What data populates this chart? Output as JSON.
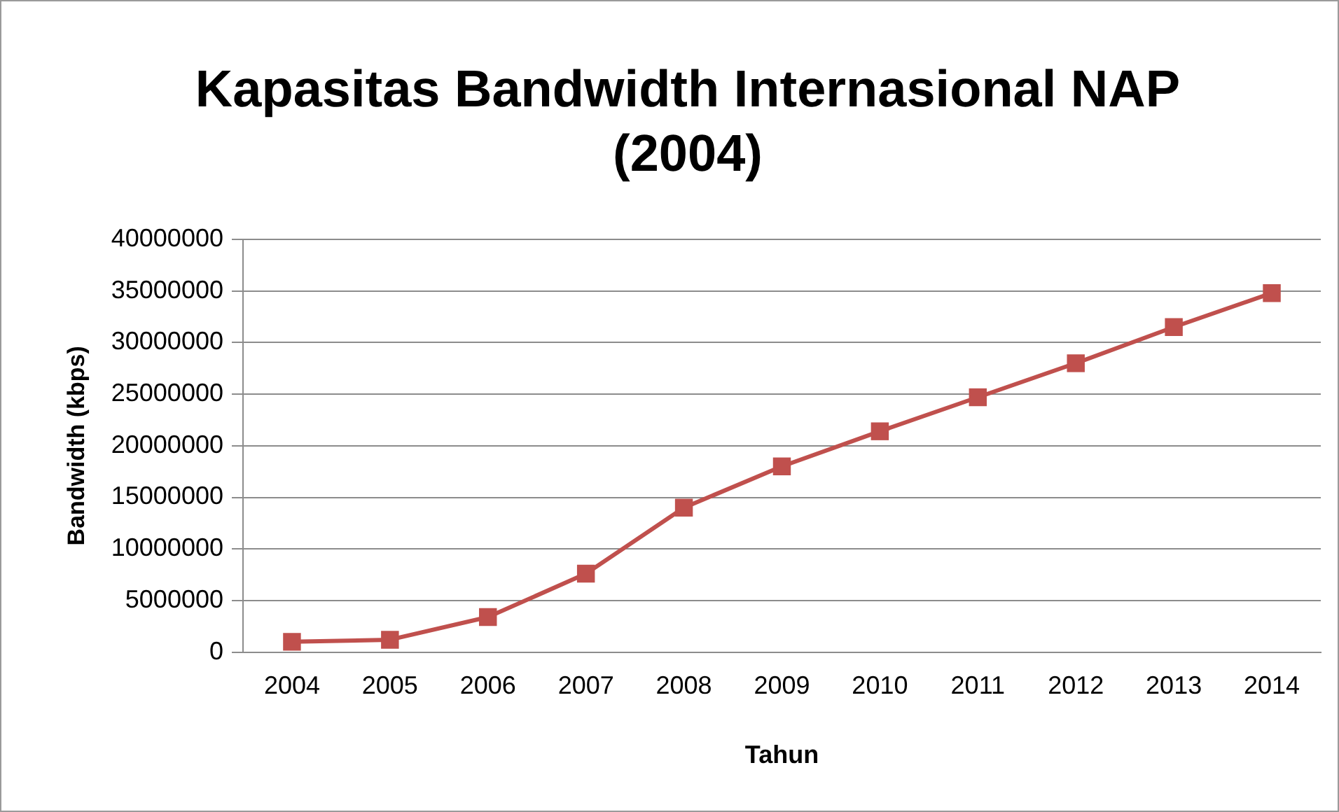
{
  "chart_data": {
    "type": "line",
    "title": "Kapasitas Bandwidth Internasional NAP (2004)",
    "xlabel": "Tahun",
    "ylabel": "Bandwidth (kbps)",
    "categories": [
      "2004",
      "2005",
      "2006",
      "2007",
      "2008",
      "2009",
      "2010",
      "2011",
      "2012",
      "2013",
      "2014"
    ],
    "series": [
      {
        "color": "#c0504d",
        "values": [
          1000000,
          1200000,
          3400000,
          7600000,
          14000000,
          18000000,
          21400000,
          24700000,
          28000000,
          31500000,
          34800000
        ]
      }
    ],
    "ylim": [
      0,
      40000000
    ],
    "yticks": [
      0,
      5000000,
      10000000,
      15000000,
      20000000,
      25000000,
      30000000,
      35000000,
      40000000
    ],
    "grid": "y",
    "legend": false,
    "marker": "square",
    "line_style": "solid"
  }
}
